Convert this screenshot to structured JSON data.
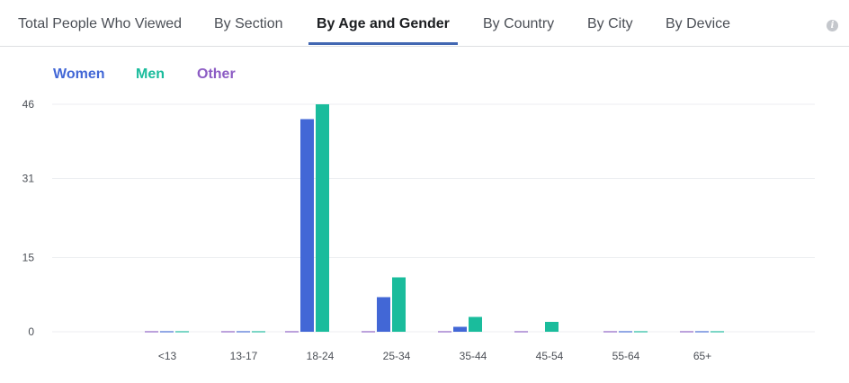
{
  "tabs": [
    {
      "label": "Total People Who Viewed",
      "active": false
    },
    {
      "label": "By Section",
      "active": false
    },
    {
      "label": "By Age and Gender",
      "active": true
    },
    {
      "label": "By Country",
      "active": false
    },
    {
      "label": "By City",
      "active": false
    },
    {
      "label": "By Device",
      "active": false
    }
  ],
  "info_icon": "info-icon",
  "colors": {
    "women": "#4267d6",
    "men": "#1abc9c",
    "other": "#8c5cc4",
    "grid": "#eceef1",
    "active_tab": "#4267b2"
  },
  "chart_data": {
    "type": "bar",
    "categories": [
      "<13",
      "13-17",
      "18-24",
      "25-34",
      "35-44",
      "45-54",
      "55-64",
      "65+"
    ],
    "series": [
      {
        "name": "Women",
        "values": [
          0,
          0,
          43,
          7,
          1,
          0,
          0,
          0
        ]
      },
      {
        "name": "Men",
        "values": [
          0,
          0,
          46,
          11,
          3,
          2,
          0,
          0
        ]
      },
      {
        "name": "Other",
        "values": [
          0,
          0,
          0,
          0,
          0,
          0,
          0,
          0
        ]
      }
    ],
    "yticks": [
      "0",
      "15",
      "31",
      "46"
    ],
    "ylim": [
      0,
      46
    ],
    "legend_placement": "top-left",
    "grid": true
  }
}
